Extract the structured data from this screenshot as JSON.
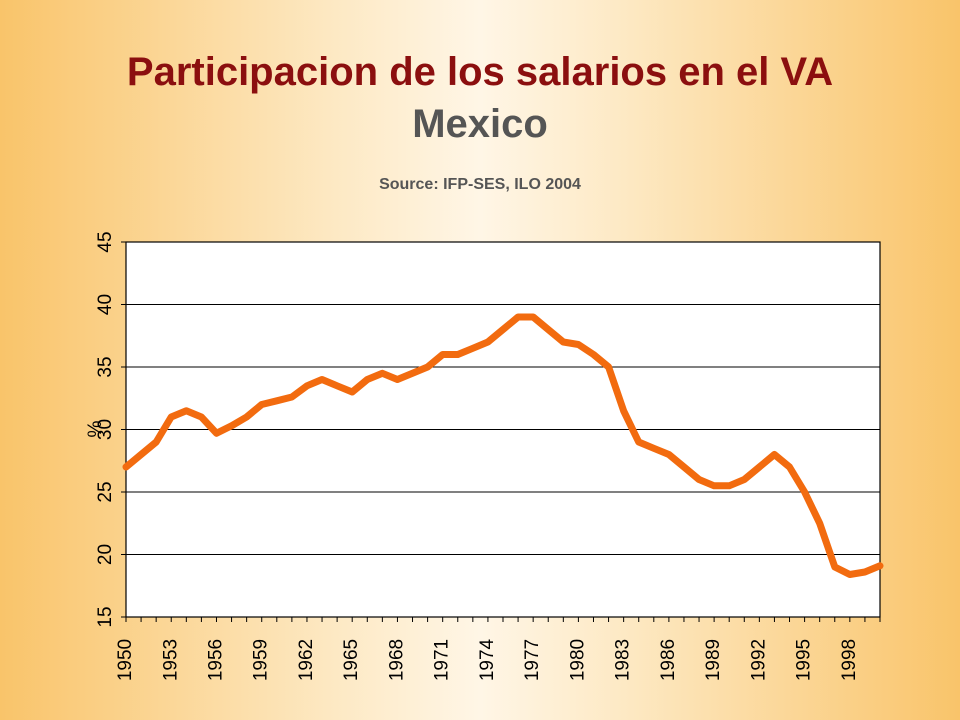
{
  "page": {
    "title": "Participacion de los salarios en el VA",
    "subtitle": "Mexico",
    "source": "Source: IFP-SES, ILO 2004"
  },
  "chart_data": {
    "type": "line",
    "title": "Participacion de los salarios en el VA",
    "subtitle": "Mexico",
    "xlabel": "",
    "ylabel": "%",
    "ylim": [
      15,
      45
    ],
    "yticks": [
      15,
      20,
      25,
      30,
      35,
      40,
      45
    ],
    "xtick_labels": [
      "1950",
      "1953",
      "1956",
      "1959",
      "1962",
      "1965",
      "1968",
      "1971",
      "1974",
      "1977",
      "1980",
      "1983",
      "1986",
      "1989",
      "1992",
      "1995",
      "1998"
    ],
    "grid": true,
    "legend": "none",
    "line_color": "#f26b0f",
    "x": [
      1950,
      1951,
      1952,
      1953,
      1954,
      1955,
      1956,
      1957,
      1958,
      1959,
      1960,
      1961,
      1962,
      1963,
      1964,
      1965,
      1966,
      1967,
      1968,
      1969,
      1970,
      1971,
      1972,
      1973,
      1974,
      1975,
      1976,
      1977,
      1978,
      1979,
      1980,
      1981,
      1982,
      1983,
      1984,
      1985,
      1986,
      1987,
      1988,
      1989,
      1990,
      1991,
      1992,
      1993,
      1994,
      1995,
      1996,
      1997,
      1998,
      1999,
      2000
    ],
    "series": [
      {
        "values": [
          27,
          28,
          29,
          31,
          31.5,
          31,
          29.7,
          30.3,
          31,
          32,
          32.3,
          32.6,
          33.5,
          34,
          33.5,
          33,
          34,
          34.5,
          34,
          34.5,
          35,
          36,
          36,
          36.5,
          37,
          38,
          39,
          39,
          38,
          37,
          36.8,
          36,
          35,
          31.5,
          29,
          28.5,
          28,
          27,
          26,
          25.5,
          25.5,
          26,
          27,
          28,
          27,
          25,
          22.5,
          19,
          18.4,
          18.6,
          19.1
        ]
      }
    ]
  }
}
